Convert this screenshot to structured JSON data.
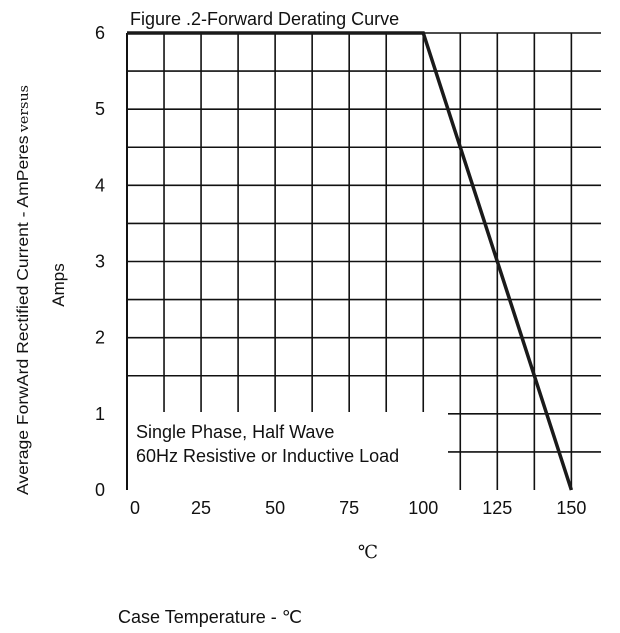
{
  "chart_data": {
    "type": "line",
    "title": "Figure .2-Forward Derating Curve",
    "ylabel_line1": "Average ForwArd Rectified Current  -  AmPeres",
    "ylabel_versus": "versus",
    "ylabel_line2": "Amps",
    "unit_label": "℃",
    "xlabel": "Case Temperature  -  ℃",
    "x_ticks": [
      "0",
      "25",
      "50",
      "75",
      "100",
      "125",
      "150"
    ],
    "y_ticks": [
      "0",
      "1",
      "2",
      "3",
      "4",
      "5",
      "6"
    ],
    "xlim": [
      0,
      160
    ],
    "ylim": [
      0,
      6
    ],
    "grid": true,
    "series": [
      {
        "x": [
          0,
          100,
          150
        ],
        "y": [
          6,
          6,
          0
        ]
      }
    ],
    "annotation": {
      "line1": "Single Phase, Half Wave",
      "line2": "60Hz Resistive or Inductive Load"
    }
  }
}
